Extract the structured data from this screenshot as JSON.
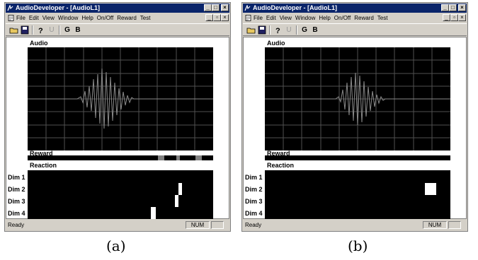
{
  "window_a": {
    "title": "AudioDeveloper - [AudioL1]",
    "menu": [
      "File",
      "Edit",
      "View",
      "Window",
      "Help",
      "On/Off",
      "Reward",
      "Test"
    ],
    "toolbar": {
      "g": "G",
      "b": "B",
      "u": "U"
    },
    "audio_label": "Audio",
    "reward_label": "Reward",
    "reaction_label": "Reaction",
    "dims": [
      "Dim 1",
      "Dim 2",
      "Dim 3",
      "Dim 4"
    ],
    "status": "Ready",
    "num": "NUM"
  },
  "window_b": {
    "title": "AudioDeveloper - [AudioL1]",
    "menu": [
      "File",
      "Edit",
      "View",
      "Window",
      "Help",
      "On/Off",
      "Reward",
      "Test"
    ],
    "toolbar": {
      "g": "G",
      "b": "B",
      "u": "U"
    },
    "audio_label": "Audio",
    "reward_label": "Reward",
    "reaction_label": "Reaction",
    "dims": [
      "Dim 1",
      "Dim 2",
      "Dim 3",
      "Dim 4"
    ],
    "status": "Ready",
    "num": "NUM"
  },
  "captions": {
    "a": "(a)",
    "b": "(b)"
  },
  "colors": {
    "titlebar": "#0a246a",
    "chrome": "#d4d0c8",
    "plot_bg": "#000000",
    "grid": "#505050",
    "waveform": "#8a8a8a",
    "reward_highlight": "#808080"
  }
}
